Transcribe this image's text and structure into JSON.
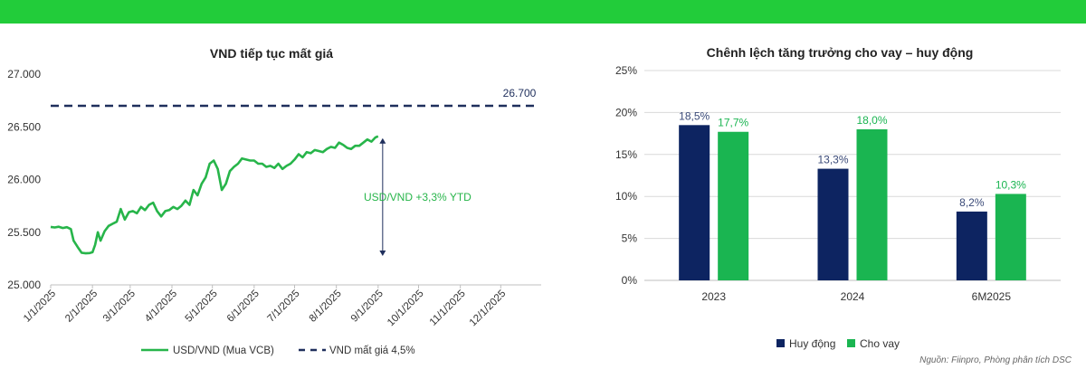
{
  "colors": {
    "banner": "#22cc3a",
    "fx_line": "#27b54a",
    "target_line": "#1f2f5c",
    "huy_dong": "#0d2461",
    "cho_vay": "#1ab551",
    "grid": "#d9d9d9"
  },
  "source_note": "Nguồn: Fiinpro, Phòng phân tích DSC",
  "chart_data": [
    {
      "type": "line",
      "title": "VND tiếp tục mất giá",
      "ylim": [
        25000,
        27000
      ],
      "yticks": [
        25000,
        25500,
        26000,
        26500,
        27000
      ],
      "ytick_labels": [
        "25.000",
        "25.500",
        "26.000",
        "26.500",
        "27.000"
      ],
      "xlim": [
        "2025-01-01",
        "2025-12-31"
      ],
      "xticks": [
        "2025-01-01",
        "2025-02-01",
        "2025-03-01",
        "2025-04-01",
        "2025-05-01",
        "2025-06-01",
        "2025-07-01",
        "2025-08-01",
        "2025-09-01",
        "2025-10-01",
        "2025-11-01",
        "2025-12-01"
      ],
      "xtick_labels": [
        "1/1/2025",
        "2/1/2025",
        "3/1/2025",
        "4/1/2025",
        "5/1/2025",
        "6/1/2025",
        "7/1/2025",
        "8/1/2025",
        "9/1/2025",
        "10/1/2025",
        "11/1/2025",
        "12/1/2025"
      ],
      "series": [
        {
          "name": "USD/VND (Mua VCB)",
          "x": [
            "2025-01-01",
            "2025-01-04",
            "2025-01-07",
            "2025-01-10",
            "2025-01-13",
            "2025-01-16",
            "2025-01-18",
            "2025-01-21",
            "2025-01-24",
            "2025-01-27",
            "2025-01-30",
            "2025-02-01",
            "2025-02-03",
            "2025-02-05",
            "2025-02-07",
            "2025-02-10",
            "2025-02-13",
            "2025-02-16",
            "2025-02-19",
            "2025-02-22",
            "2025-02-25",
            "2025-02-28",
            "2025-03-03",
            "2025-03-06",
            "2025-03-09",
            "2025-03-12",
            "2025-03-15",
            "2025-03-18",
            "2025-03-21",
            "2025-03-24",
            "2025-03-27",
            "2025-03-30",
            "2025-04-02",
            "2025-04-05",
            "2025-04-08",
            "2025-04-11",
            "2025-04-14",
            "2025-04-17",
            "2025-04-20",
            "2025-04-23",
            "2025-04-26",
            "2025-04-29",
            "2025-05-02",
            "2025-05-05",
            "2025-05-08",
            "2025-05-11",
            "2025-05-14",
            "2025-05-17",
            "2025-05-20",
            "2025-05-23",
            "2025-05-26",
            "2025-05-29",
            "2025-06-01",
            "2025-06-04",
            "2025-06-07",
            "2025-06-10",
            "2025-06-13",
            "2025-06-16",
            "2025-06-19",
            "2025-06-22",
            "2025-06-25",
            "2025-06-28",
            "2025-07-01",
            "2025-07-04",
            "2025-07-07",
            "2025-07-10",
            "2025-07-13",
            "2025-07-16",
            "2025-07-19",
            "2025-07-22",
            "2025-07-25",
            "2025-07-28",
            "2025-07-31",
            "2025-08-03",
            "2025-08-06",
            "2025-08-09",
            "2025-08-12",
            "2025-08-15",
            "2025-08-18",
            "2025-08-21",
            "2025-08-24",
            "2025-08-27",
            "2025-08-30",
            "2025-09-01"
          ],
          "values": [
            25550,
            25545,
            25552,
            25540,
            25548,
            25530,
            25420,
            25360,
            25305,
            25300,
            25302,
            25310,
            25380,
            25500,
            25420,
            25510,
            25560,
            25580,
            25600,
            25720,
            25620,
            25690,
            25700,
            25680,
            25740,
            25710,
            25760,
            25780,
            25700,
            25650,
            25700,
            25710,
            25740,
            25720,
            25750,
            25800,
            25760,
            25900,
            25850,
            25960,
            26020,
            26150,
            26180,
            26100,
            25900,
            25960,
            26080,
            26120,
            26150,
            26200,
            26190,
            26180,
            26180,
            26150,
            26150,
            26120,
            26130,
            26110,
            26150,
            26100,
            26130,
            26150,
            26190,
            26240,
            26210,
            26260,
            26250,
            26280,
            26270,
            26260,
            26290,
            26310,
            26300,
            26350,
            26330,
            26300,
            26290,
            26320,
            26320,
            26350,
            26380,
            26360,
            26400,
            26410
          ]
        },
        {
          "name": "VND mất giá 4,5%",
          "style": "dashed",
          "value": 26700
        }
      ],
      "annotations": [
        {
          "text": "26.700"
        },
        {
          "text": "USD/VND +3,3% YTD"
        }
      ],
      "legend": "bottom"
    },
    {
      "type": "bar",
      "title": "Chênh lệch tăng trưởng cho vay – huy động",
      "categories": [
        "2023",
        "2024",
        "6M2025"
      ],
      "ylim": [
        0,
        25
      ],
      "yticks": [
        0,
        5,
        10,
        15,
        20,
        25
      ],
      "ytick_labels": [
        "0%",
        "5%",
        "10%",
        "15%",
        "20%",
        "25%"
      ],
      "series": [
        {
          "name": "Huy động",
          "values": [
            18.5,
            13.3,
            8.2
          ],
          "labels": [
            "18,5%",
            "13,3%",
            "8,2%"
          ]
        },
        {
          "name": "Cho vay",
          "values": [
            17.7,
            18.0,
            10.3
          ],
          "labels": [
            "17,7%",
            "18,0%",
            "10,3%"
          ]
        }
      ],
      "legend": "bottom-left"
    }
  ]
}
